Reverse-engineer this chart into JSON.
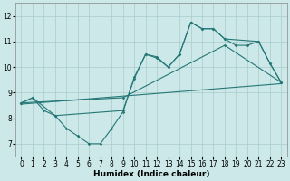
{
  "xlabel": "Humidex (Indice chaleur)",
  "bg_color": "#cce8e8",
  "grid_color": "#aacccc",
  "line_color": "#267777",
  "xlim": [
    -0.5,
    23.5
  ],
  "ylim": [
    6.5,
    12.5
  ],
  "yticks": [
    7,
    8,
    9,
    10,
    11,
    12
  ],
  "xticks": [
    0,
    1,
    2,
    3,
    4,
    5,
    6,
    7,
    8,
    9,
    10,
    11,
    12,
    13,
    14,
    15,
    16,
    17,
    18,
    19,
    20,
    21,
    22,
    23
  ],
  "line1_x": [
    0,
    1,
    2,
    3,
    4,
    5,
    6,
    7,
    8,
    9,
    10,
    11,
    12,
    13,
    14,
    15,
    16,
    17,
    18,
    19,
    20,
    21,
    22,
    23
  ],
  "line1_y": [
    8.6,
    8.8,
    8.3,
    8.1,
    7.6,
    7.3,
    7.0,
    7.0,
    7.6,
    8.25,
    9.6,
    10.5,
    10.4,
    10.0,
    10.5,
    11.75,
    11.5,
    11.5,
    11.1,
    10.85,
    10.85,
    11.0,
    10.15,
    9.4
  ],
  "line2_x": [
    0,
    1,
    3,
    9,
    10,
    11,
    12,
    13,
    14,
    15,
    16,
    17,
    18,
    21,
    22,
    23
  ],
  "line2_y": [
    8.6,
    8.8,
    8.1,
    8.3,
    9.55,
    10.5,
    10.35,
    10.0,
    10.5,
    11.75,
    11.5,
    11.5,
    11.1,
    11.0,
    10.15,
    9.4
  ],
  "line3_x": [
    0,
    9,
    18,
    23
  ],
  "line3_y": [
    8.6,
    8.8,
    10.85,
    9.4
  ],
  "line4_x": [
    0,
    23
  ],
  "line4_y": [
    8.55,
    9.35
  ]
}
